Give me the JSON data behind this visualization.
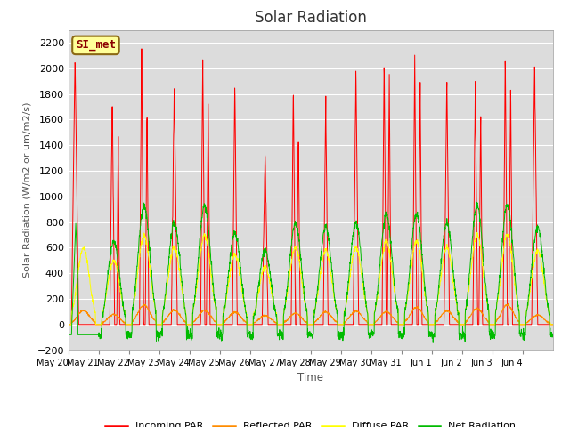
{
  "title": "Solar Radiation",
  "ylabel": "Solar Radiation (W/m2 or um/m2/s)",
  "xlabel": "Time",
  "ylim": [
    -200,
    2300
  ],
  "yticks": [
    -200,
    0,
    200,
    400,
    600,
    800,
    1000,
    1200,
    1400,
    1600,
    1800,
    2000,
    2200
  ],
  "annotation": "SI_met",
  "annotation_color": "#8B0000",
  "annotation_bg": "#FFFF99",
  "annotation_border": "#8B6914",
  "bg_color": "#DCDCDC",
  "grid_color": "white",
  "colors": {
    "incoming": "#FF0000",
    "reflected": "#FF8C00",
    "diffuse": "#FFFF00",
    "net": "#00BB00"
  },
  "legend": [
    "Incoming PAR",
    "Reflected PAR",
    "Diffuse PAR",
    "Net Radiation"
  ],
  "xtick_labels": [
    "May 20",
    "May 21",
    "May 22",
    "May 23",
    "May 24",
    "May 25",
    "May 26",
    "May 27",
    "May 28",
    "May 29",
    "May 30",
    "May 31",
    "Jun 1",
    "Jun 2",
    "Jun 3",
    "Jun 4"
  ],
  "n_days": 16,
  "pts_per_day": 144,
  "title_fontsize": 12
}
